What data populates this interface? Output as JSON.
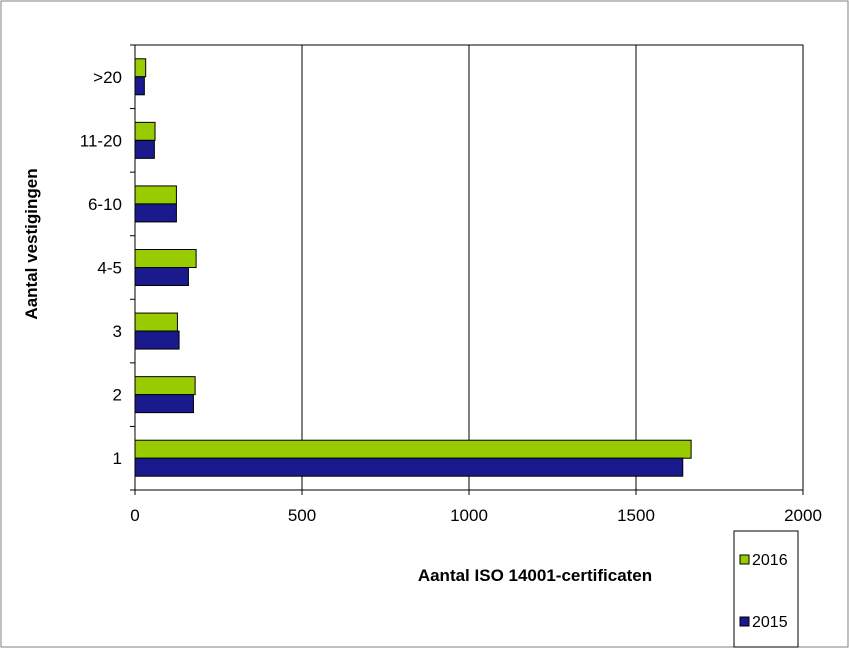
{
  "chart_data": {
    "type": "bar",
    "orientation": "horizontal",
    "categories": [
      "1",
      "2",
      "3",
      "4-5",
      "6-10",
      "11-20",
      ">20"
    ],
    "series": [
      {
        "name": "2016",
        "color": "#99CC00",
        "values": [
          1665,
          180,
          127,
          183,
          124,
          60,
          32
        ]
      },
      {
        "name": "2015",
        "color": "#1A1A8C",
        "values": [
          1640,
          175,
          132,
          160,
          124,
          58,
          28
        ]
      }
    ],
    "xlabel": "Aantal ISO 14001-certificaten",
    "ylabel": "Aantal vestigingen",
    "xlim": [
      0,
      2000
    ],
    "xticks": [
      "0",
      "500",
      "1000",
      "1500",
      "2000"
    ],
    "grid": "vertical",
    "legend_position": "bottom-right"
  }
}
